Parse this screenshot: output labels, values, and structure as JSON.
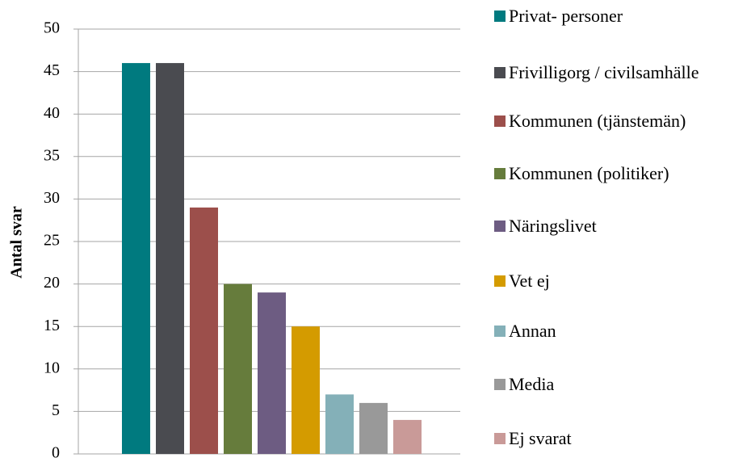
{
  "chart_data": {
    "type": "bar",
    "y_label": "Antal svar",
    "categories": [
      null
    ],
    "series": [
      {
        "name": "Privat- personer",
        "color": "#007a7f",
        "values": [
          46
        ]
      },
      {
        "name": "Frivilligorg / civilsamhälle",
        "color": "#4a4b50",
        "values": [
          46
        ]
      },
      {
        "name": "Kommunen (tjänstemän)",
        "color": "#9c4f4b",
        "values": [
          29
        ]
      },
      {
        "name": "Kommunen (politiker)",
        "color": "#667c3c",
        "values": [
          20
        ]
      },
      {
        "name": "Näringslivet",
        "color": "#6d5c82",
        "values": [
          19
        ]
      },
      {
        "name": "Vet ej",
        "color": "#d49b00",
        "values": [
          15
        ]
      },
      {
        "name": "Annan",
        "color": "#84b0b8",
        "values": [
          7
        ]
      },
      {
        "name": "Media",
        "color": "#999999",
        "values": [
          6
        ]
      },
      {
        "name": "Ej svarat",
        "color": "#c99a98",
        "values": [
          4
        ]
      }
    ],
    "ylim": [
      0,
      50
    ],
    "yticks": [
      0,
      5,
      10,
      15,
      20,
      25,
      30,
      35,
      40,
      45,
      50
    ],
    "grid": true,
    "legend": "right"
  }
}
